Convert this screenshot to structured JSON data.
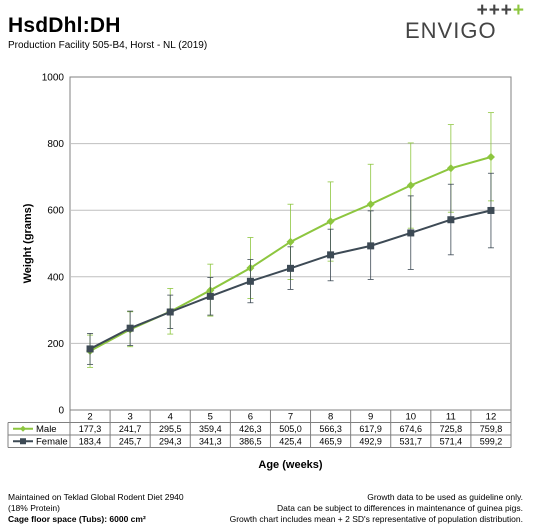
{
  "header": {
    "title": "HsdDhl:DH",
    "subtitle": "Production Facility 505-B4, Horst - NL (2019)"
  },
  "logo": {
    "plus_marks": "+++",
    "plus_green": "+",
    "wordmark": "ENVIGO"
  },
  "chart_data": {
    "type": "line",
    "xlabel": "Age (weeks)",
    "ylabel": "Weight (grams)",
    "ylim": [
      0,
      1000
    ],
    "yticks": [
      "0",
      "200",
      "400",
      "600",
      "800",
      "1000"
    ],
    "grid": true,
    "x": [
      2,
      3,
      4,
      5,
      6,
      7,
      8,
      9,
      10,
      11,
      12
    ],
    "x_labels": [
      "2",
      "3",
      "4",
      "5",
      "6",
      "7",
      "8",
      "9",
      "10",
      "11",
      "12"
    ],
    "series": [
      {
        "name": "Male",
        "color": "#8dc63f",
        "marker": "diamond",
        "values": [
          177.3,
          241.7,
          295.5,
          359.4,
          426.3,
          505.0,
          566.3,
          617.9,
          674.6,
          725.8,
          759.8
        ],
        "labels": [
          "177,3",
          "241,7",
          "295,5",
          "359,4",
          "426,3",
          "505,0",
          "566,3",
          "617,9",
          "674,6",
          "725,8",
          "759,8"
        ],
        "upper": [
          225,
          295,
          365,
          438,
          518,
          618,
          685,
          738,
          802,
          857,
          893
        ],
        "lower": [
          128,
          190,
          228,
          282,
          335,
          392,
          447,
          497,
          546,
          594,
          628
        ]
      },
      {
        "name": "Female",
        "color": "#3d4a55",
        "marker": "square",
        "values": [
          183.4,
          245.7,
          294.3,
          341.3,
          386.5,
          425.4,
          465.9,
          492.9,
          531.7,
          571.4,
          599.2
        ],
        "labels": [
          "183,4",
          "245,7",
          "294,3",
          "341,3",
          "386,5",
          "425,4",
          "465,9",
          "492,9",
          "531,7",
          "571,4",
          "599,2"
        ],
        "upper": [
          230,
          297,
          345,
          398,
          452,
          490,
          543,
          598,
          643,
          678,
          711
        ],
        "lower": [
          137,
          194,
          245,
          285,
          322,
          362,
          388,
          392,
          422,
          466,
          487
        ]
      }
    ]
  },
  "footer": {
    "left": [
      "Maintained on Teklad Global Rodent Diet 2940",
      "(18% Protein)",
      "Cage floor space (Tubs): 6000 cm²"
    ],
    "right": [
      "Growth data to be used as guideline only.",
      "Data can be subject to differences in maintenance of guinea pigs.",
      "Growth chart includes mean + 2 SD's representative of population distribution."
    ]
  }
}
